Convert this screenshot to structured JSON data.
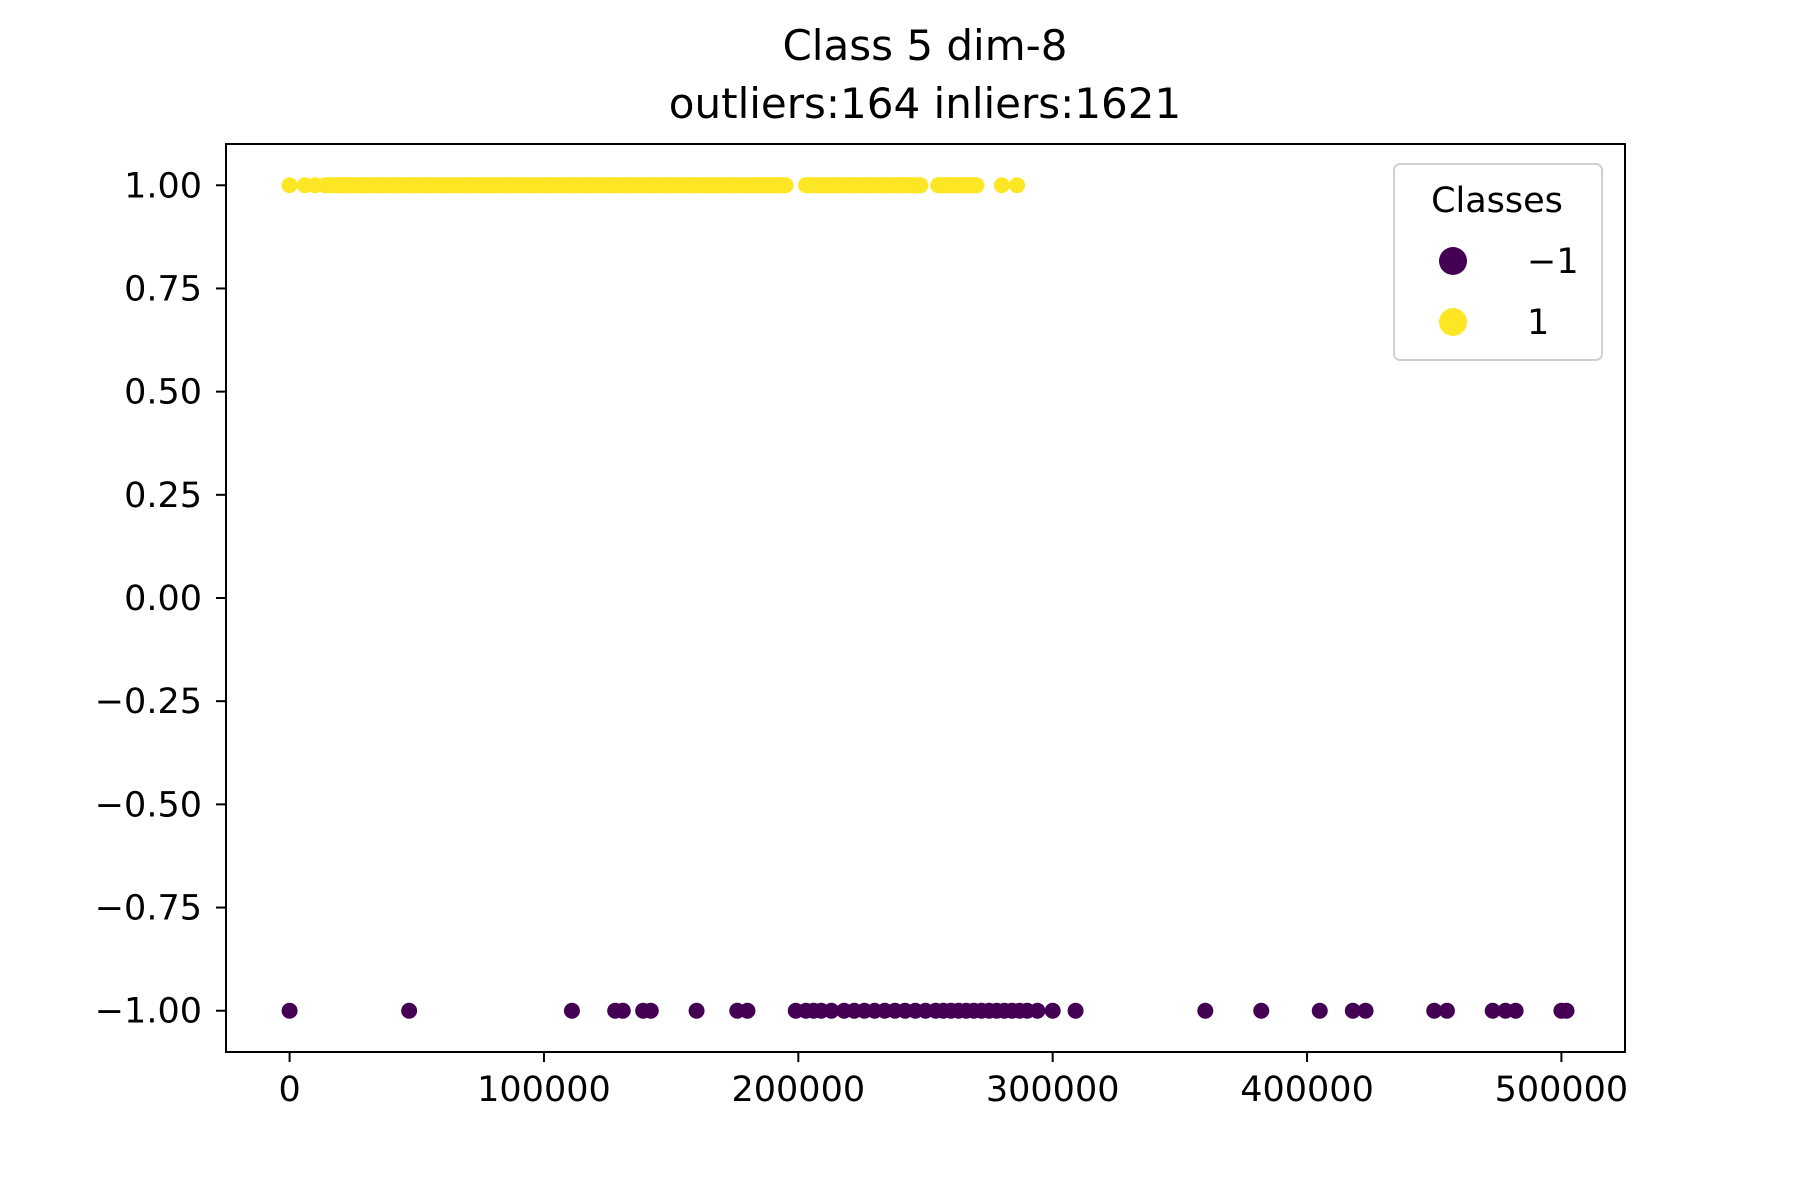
{
  "chart_data": {
    "type": "scatter",
    "title": "Class 5 dim-8",
    "subtitle": "outliers:164  inliers:1621",
    "xlabel": "",
    "ylabel": "",
    "xlim": [
      -25000,
      525000
    ],
    "ylim": [
      -1.1,
      1.1
    ],
    "x_ticks": [
      0,
      100000,
      200000,
      300000,
      400000,
      500000
    ],
    "x_tick_labels": [
      "0",
      "100000",
      "200000",
      "300000",
      "400000",
      "500000"
    ],
    "y_ticks": [
      1.0,
      0.75,
      0.5,
      0.25,
      0.0,
      -0.25,
      -0.5,
      -0.75,
      -1.0
    ],
    "y_tick_labels": [
      "1.00",
      "0.75",
      "0.50",
      "0.25",
      "0.00",
      "−0.25",
      "−0.50",
      "−0.75",
      "−1.00"
    ],
    "grid": false,
    "legend": {
      "title": "Classes",
      "position": "upper right",
      "entries": [
        {
          "label": "−1",
          "color": "#440154"
        },
        {
          "label": "1",
          "color": "#fde725"
        }
      ]
    },
    "series": [
      {
        "class": -1,
        "color": "#440154",
        "y": -1,
        "x": [
          0,
          47000,
          111000,
          128000,
          131000,
          139000,
          142000,
          160000,
          176000,
          180000,
          199000,
          203000,
          206000,
          209000,
          213000,
          218000,
          222000,
          226000,
          230000,
          234000,
          238000,
          242000,
          246000,
          250000,
          254000,
          257000,
          260000,
          263000,
          266000,
          269000,
          272000,
          275000,
          278000,
          281000,
          284000,
          287000,
          290000,
          294000,
          300000,
          309000,
          360000,
          382000,
          405000,
          418000,
          423000,
          450000,
          455000,
          473000,
          478000,
          482000,
          500000,
          502000
        ]
      },
      {
        "class": 1,
        "color": "#fde725",
        "y": 1,
        "x_dense_ranges": [
          [
            15000,
            195000
          ],
          [
            203000,
            248000
          ],
          [
            255000,
            270000
          ]
        ],
        "x": [
          0,
          6000,
          10000,
          14000,
          19000,
          24000,
          30000,
          36000,
          42000,
          48000,
          55000,
          62000,
          70000,
          78000,
          86000,
          94000,
          102000,
          110000,
          118000,
          126000,
          134000,
          142000,
          150000,
          158000,
          166000,
          174000,
          182000,
          188000,
          193000,
          204000,
          210000,
          216000,
          222000,
          228000,
          234000,
          240000,
          245000,
          256000,
          260000,
          264000,
          268000,
          280000,
          286000
        ]
      }
    ]
  }
}
